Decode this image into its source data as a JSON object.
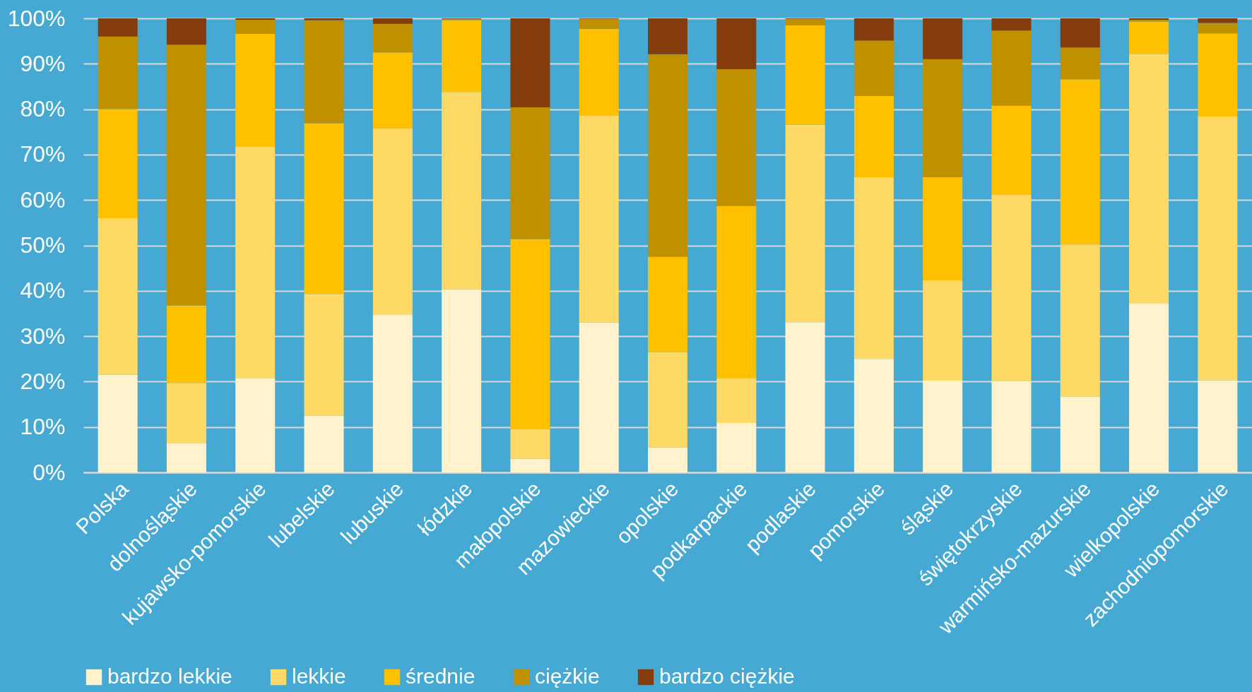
{
  "chart_data": {
    "type": "bar",
    "stacked": true,
    "categories": [
      "Polska",
      "dolnośląskie",
      "kujawsko-pomorskie",
      "lubelskie",
      "lubuskie",
      "łódzkie",
      "małopolskie",
      "mazowieckie",
      "opolskie",
      "podkarpackie",
      "podlaskie",
      "pomorskie",
      "śląskie",
      "świętokrzyskie",
      "warmińsko-mazurskie",
      "wielkopolskie",
      "zachodniopomorskie"
    ],
    "series": [
      {
        "name": "bardzo lekkie",
        "color": "#fff2cc",
        "values": [
          21.5,
          6.5,
          20.7,
          12.5,
          34.8,
          40.3,
          3,
          33,
          5.5,
          10.9,
          33.1,
          25,
          20.2,
          20.1,
          16.7,
          37.3,
          20.3
        ]
      },
      {
        "name": "lekkie",
        "color": "#ffd966",
        "values": [
          34.5,
          13.2,
          51.1,
          26.8,
          41,
          43.5,
          6.5,
          45.6,
          21,
          9.9,
          43.5,
          40,
          22.1,
          41.1,
          33.5,
          54.9,
          58.1
        ]
      },
      {
        "name": "średnie",
        "color": "#ffc000",
        "values": [
          24,
          17.1,
          24.8,
          37.6,
          16.7,
          15.8,
          41.9,
          19.1,
          21,
          37.9,
          21.9,
          17.9,
          22.7,
          19.6,
          36.4,
          7.1,
          18.3
        ]
      },
      {
        "name": "ciężkie",
        "color": "#bf9000",
        "values": [
          16,
          57.4,
          3.1,
          22.7,
          6.3,
          0.3,
          29,
          2.2,
          44.6,
          30.1,
          1.4,
          12.2,
          26,
          16.5,
          7,
          0.4,
          2.3
        ]
      },
      {
        "name": "bardzo ciężkie",
        "color": "#843c0c",
        "values": [
          4,
          5.8,
          0.3,
          0.4,
          1.2,
          0.1,
          19.6,
          0.1,
          7.9,
          11.2,
          0.1,
          4.9,
          9,
          2.7,
          6.4,
          0.3,
          1
        ]
      }
    ],
    "ylim": [
      0,
      100
    ],
    "yticks": [
      {
        "value": 0,
        "label": "0%"
      },
      {
        "value": 10,
        "label": "10%"
      },
      {
        "value": 20,
        "label": "20%"
      },
      {
        "value": 30,
        "label": "30%"
      },
      {
        "value": 40,
        "label": "40%"
      },
      {
        "value": 50,
        "label": "50%"
      },
      {
        "value": 60,
        "label": "60%"
      },
      {
        "value": 70,
        "label": "70%"
      },
      {
        "value": 80,
        "label": "80%"
      },
      {
        "value": 90,
        "label": "90%"
      },
      {
        "value": 100,
        "label": "100%"
      }
    ],
    "grid": "y",
    "legend": "bottom"
  }
}
